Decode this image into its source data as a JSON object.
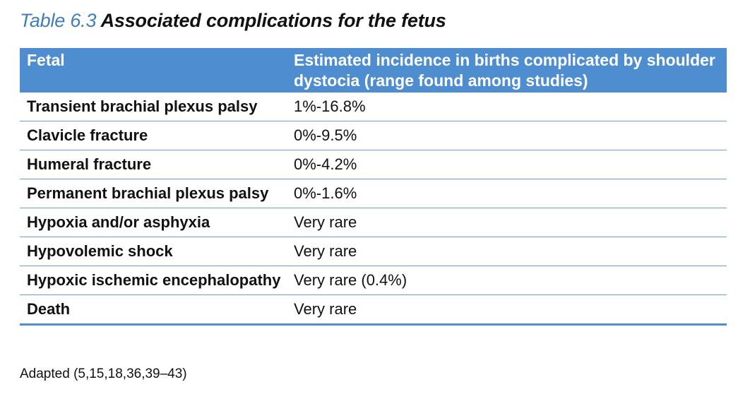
{
  "title": {
    "number": "Table 6.3",
    "text": "Associated complications for the fetus"
  },
  "table": {
    "headers": [
      "Fetal",
      "Estimated incidence in births complicated by shoulder dystocia (range found among studies)"
    ],
    "rows": [
      [
        "Transient brachial plexus palsy",
        "1%-16.8%"
      ],
      [
        "Clavicle fracture",
        "0%-9.5%"
      ],
      [
        "Humeral fracture",
        "0%-4.2%"
      ],
      [
        "Permanent brachial plexus palsy",
        "0%-1.6%"
      ],
      [
        "Hypoxia and/or asphyxia",
        "Very rare"
      ],
      [
        "Hypovolemic shock",
        "Very rare"
      ],
      [
        "Hypoxic ischemic encephalopathy",
        "Very rare (0.4%)"
      ],
      [
        "Death",
        "Very rare"
      ]
    ]
  },
  "source": "Adapted (5,15,18,36,39–43)",
  "colors": {
    "header_bg": "#4e8dd0",
    "title_number": "#3f7dbb",
    "row_rule": "#6a9ed6"
  }
}
